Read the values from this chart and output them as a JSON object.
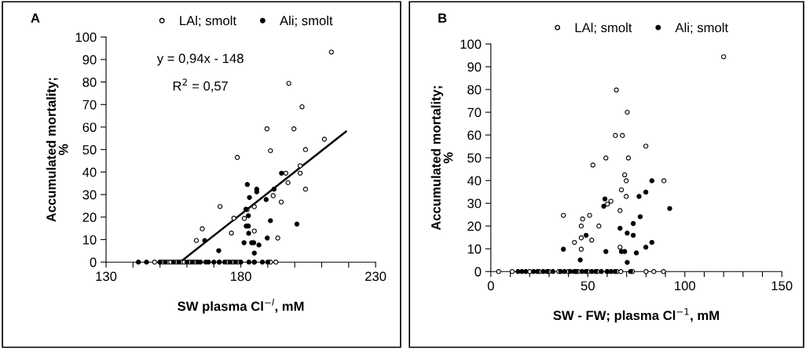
{
  "chart_data": [
    {
      "type": "scatter",
      "xlabel": "SW plasma Cl$^{−l}$, mM",
      "ylabel": "Accumulated mortality;\n%",
      "annotations": [
        "A",
        "y = 0,94x - 148",
        "R$^{2}$ = 0,57"
      ],
      "legend": "top",
      "grid": false,
      "marker": "circle",
      "xlim": [
        130,
        230
      ],
      "ylim": [
        0,
        100
      ],
      "xticks": [
        130,
        {
          "value": 140,
          "label": null
        },
        {
          "value": 150,
          "label": null
        },
        {
          "value": 160,
          "label": null
        },
        {
          "value": 170,
          "label": null
        },
        180,
        {
          "value": 190,
          "label": null
        },
        {
          "value": 200,
          "label": null
        },
        {
          "value": 210,
          "label": null
        },
        {
          "value": 220,
          "label": null
        },
        230
      ],
      "yticks": [
        0,
        10,
        20,
        30,
        40,
        50,
        60,
        70,
        80,
        90,
        100
      ],
      "series": [
        {
          "name": "LAl; smolt",
          "color": "#ffffff",
          "x": [
            213.6,
            197.8,
            202.7,
            189.7,
            199.7,
            211,
            191,
            204,
            178.7,
            202,
            196.7,
            202,
            197.5,
            204,
            192,
            195,
            172.3,
            182.3,
            185,
            177.4,
            181.3,
            165.7,
            176.5,
            185,
            163.5,
            193.7,
            148,
            150,
            151,
            153,
            154,
            156,
            158,
            159,
            161,
            163,
            172,
            175,
            177,
            179,
            185,
            191,
            193
          ],
          "values": [
            93.3,
            79.4,
            69,
            59.2,
            59.2,
            54.6,
            49.5,
            50,
            46.5,
            42.8,
            39.5,
            39.5,
            35.3,
            32.4,
            29.5,
            26.7,
            24.7,
            23.3,
            24.6,
            19.5,
            19.4,
            14.8,
            12.9,
            13.8,
            9.6,
            10.7,
            0,
            0,
            0,
            0,
            0,
            0,
            0,
            0,
            0,
            0,
            0,
            0,
            0,
            0,
            0,
            0,
            0
          ]
        },
        {
          "name": "Ali; smolt",
          "color": "#000000",
          "x": [
            195.1,
            182.4,
            185.9,
            185.9,
            192.3,
            183.2,
            189.4,
            181.9,
            182.8,
            191,
            182,
            182.8,
            200.8,
            182.9,
            166.6,
            189.8,
            181.2,
            184,
            184.8,
            186.7,
            171.8,
            185,
            142,
            145,
            150,
            152,
            155,
            157,
            160,
            162,
            164,
            165,
            167,
            168,
            170,
            172,
            174,
            176,
            178,
            180,
            183,
            185,
            188,
            190
          ],
          "values": [
            39.5,
            34.5,
            32.4,
            31.2,
            32.4,
            28.7,
            27.8,
            23.5,
            20.6,
            18.4,
            16,
            16,
            16.9,
            12.8,
            9.6,
            10.7,
            8.6,
            8.6,
            8.6,
            7.6,
            5.1,
            4,
            0,
            0,
            0,
            0,
            0,
            0,
            0,
            0,
            0,
            0,
            0,
            0,
            0,
            0,
            0,
            0,
            0,
            0,
            0,
            0,
            0,
            0
          ]
        },
        {
          "type": "line",
          "marker": "none",
          "color": "#000000",
          "x": [
            157.5,
            219
          ],
          "values": [
            0,
            58
          ]
        }
      ]
    },
    {
      "type": "scatter",
      "xlabel": "SW - FW; plasma Cl$^{−1}$, mM",
      "ylabel": "Accumulated mortality;\n%",
      "annotations": [
        "B"
      ],
      "legend": "top",
      "grid": false,
      "marker": "circle",
      "xlim": [
        0,
        150
      ],
      "ylim": [
        0,
        100
      ],
      "xticks": [
        0,
        {
          "value": 10,
          "label": null
        },
        {
          "value": 20,
          "label": null
        },
        {
          "value": 30,
          "label": null
        },
        {
          "value": 40,
          "label": null
        },
        50,
        {
          "value": 60,
          "label": null
        },
        {
          "value": 70,
          "label": null
        },
        {
          "value": 80,
          "label": null
        },
        {
          "value": 90,
          "label": null
        },
        100,
        {
          "value": 110,
          "label": null
        },
        {
          "value": 120,
          "label": null
        },
        {
          "value": 130,
          "label": null
        },
        {
          "value": 140,
          "label": null
        },
        150
      ],
      "yticks": [
        0,
        10,
        20,
        30,
        40,
        50,
        60,
        70,
        80,
        90,
        100
      ],
      "series": [
        {
          "name": "LAl; smolt",
          "color": "#ffffff",
          "x": [
            120,
            64.7,
            70.3,
            64.2,
            67.8,
            79.9,
            59.3,
            70.9,
            52.6,
            69,
            69.8,
            89.2,
            67.3,
            69.8,
            61.9,
            60.1,
            66.6,
            37.4,
            50.9,
            47.3,
            46.6,
            55.7,
            46.6,
            52,
            43.1,
            66.6,
            46.6,
            4,
            11,
            20,
            25,
            30,
            35,
            40,
            45,
            50,
            55,
            60,
            65,
            67,
            73,
            80,
            84,
            89
          ],
          "values": [
            94.4,
            79.8,
            70,
            59.8,
            59.8,
            55.1,
            49.9,
            49.9,
            46.8,
            42.5,
            39.9,
            39.9,
            35.9,
            33,
            30.9,
            29.6,
            26.8,
            24.7,
            24.7,
            23.1,
            20,
            20,
            14.8,
            13.8,
            12.8,
            10.7,
            9.8,
            0,
            0,
            0,
            0,
            0,
            0,
            0,
            0,
            0,
            0,
            0,
            0,
            0,
            0,
            0,
            0,
            0
          ]
        },
        {
          "name": "Ali; smolt",
          "color": "#000000",
          "x": [
            83,
            79.9,
            76.4,
            58.8,
            58.2,
            92.2,
            77,
            73.4,
            66.6,
            70.3,
            73.4,
            49.1,
            83,
            37.4,
            79.9,
            59.3,
            67.3,
            69,
            75,
            46.1,
            70.3,
            14,
            16,
            18,
            22,
            24,
            27,
            29,
            32,
            36,
            38,
            41,
            43,
            44,
            47,
            49,
            52,
            54,
            57,
            60,
            62,
            64,
            72
          ],
          "values": [
            39.9,
            34.9,
            33,
            31.9,
            28.7,
            27.7,
            24.1,
            21.1,
            19,
            16.9,
            15.9,
            15.9,
            12.8,
            9.8,
            10.7,
            8.8,
            8.8,
            8.8,
            8.2,
            5.1,
            4,
            0,
            0,
            0,
            0,
            0,
            0,
            0,
            0,
            0,
            0,
            0,
            0,
            0,
            0,
            0,
            0,
            0,
            0,
            0,
            0,
            0,
            0
          ]
        }
      ]
    }
  ]
}
